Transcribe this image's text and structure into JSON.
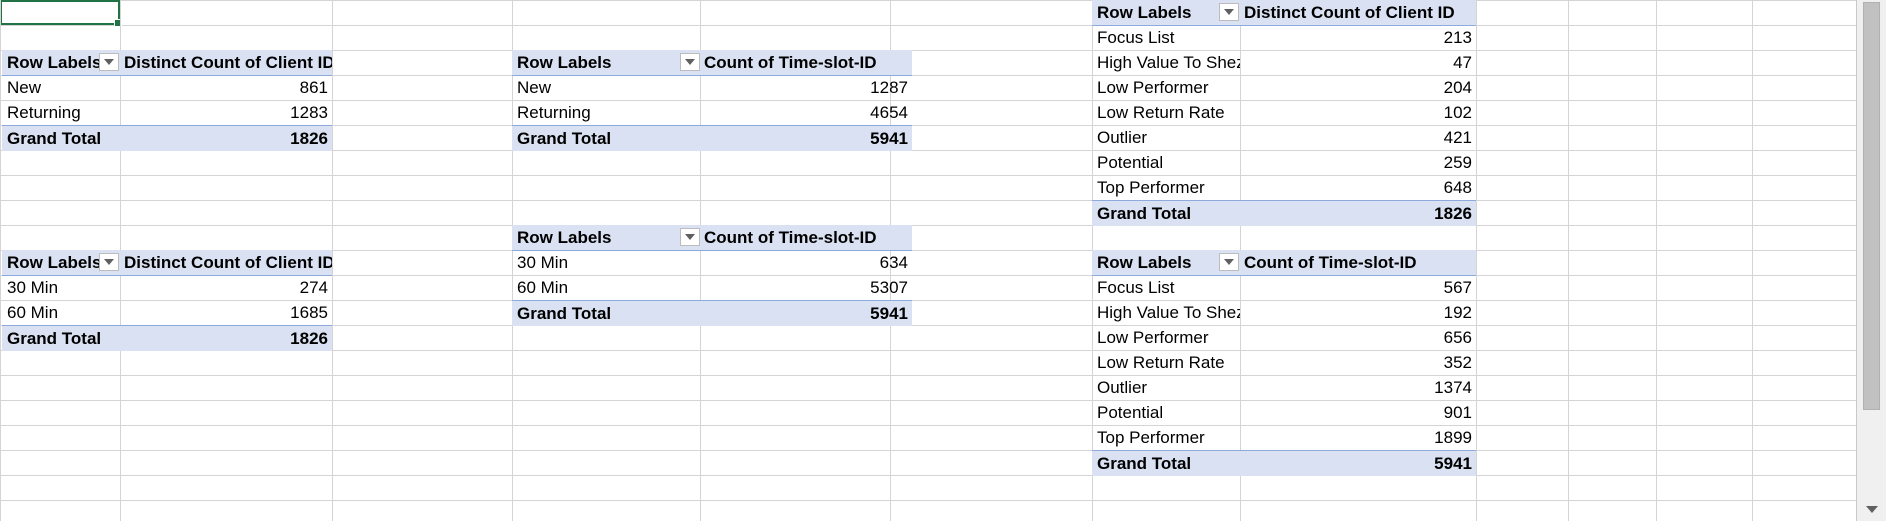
{
  "sheet": {
    "pivots": [
      {
        "id": "clientid-by-type",
        "headers": [
          "Row Labels",
          "Distinct Count of Client ID"
        ],
        "rows": [
          [
            "New",
            "861"
          ],
          [
            "Returning",
            "1283"
          ]
        ],
        "total": [
          "Grand Total",
          "1826"
        ]
      },
      {
        "id": "timeslot-by-type",
        "headers": [
          "Row Labels",
          "Count of Time-slot-ID"
        ],
        "rows": [
          [
            "New",
            "1287"
          ],
          [
            "Returning",
            "4654"
          ]
        ],
        "total": [
          "Grand Total",
          "5941"
        ]
      },
      {
        "id": "clientid-by-segment",
        "headers": [
          "Row Labels",
          "Distinct Count of Client ID"
        ],
        "rows": [
          [
            "Focus List",
            "213"
          ],
          [
            "High Value To Shez",
            "47"
          ],
          [
            "Low Performer",
            "204"
          ],
          [
            "Low Return Rate",
            "102"
          ],
          [
            "Outlier",
            "421"
          ],
          [
            "Potential",
            "259"
          ],
          [
            "Top Performer",
            "648"
          ]
        ],
        "total": [
          "Grand Total",
          "1826"
        ]
      },
      {
        "id": "clientid-by-duration",
        "headers": [
          "Row Labels",
          "Distinct Count of Client ID"
        ],
        "rows": [
          [
            "30 Min",
            "274"
          ],
          [
            "60 Min",
            "1685"
          ]
        ],
        "total": [
          "Grand Total",
          "1826"
        ]
      },
      {
        "id": "timeslot-by-duration",
        "headers": [
          "Row Labels",
          "Count of Time-slot-ID"
        ],
        "rows": [
          [
            "30 Min",
            "634"
          ],
          [
            "60 Min",
            "5307"
          ]
        ],
        "total": [
          "Grand Total",
          "5941"
        ]
      },
      {
        "id": "timeslot-by-segment",
        "headers": [
          "Row Labels",
          "Count of Time-slot-ID"
        ],
        "rows": [
          [
            "Focus List",
            "567"
          ],
          [
            "High Value To Shez",
            "192"
          ],
          [
            "Low Performer",
            "656"
          ],
          [
            "Low Return Rate",
            "352"
          ],
          [
            "Outlier",
            "1374"
          ],
          [
            "Potential",
            "901"
          ],
          [
            "Top Performer",
            "1899"
          ]
        ],
        "total": [
          "Grand Total",
          "5941"
        ]
      }
    ],
    "icons": {
      "filter_dropdown": "filter-dropdown-icon",
      "scroll_down": "scroll-down-arrow-icon"
    },
    "colors": {
      "pivot_header_fill": "#d9e1f2",
      "pivot_border": "#8ea9db",
      "gridline": "#d4d4d4",
      "selection": "#217346"
    }
  }
}
